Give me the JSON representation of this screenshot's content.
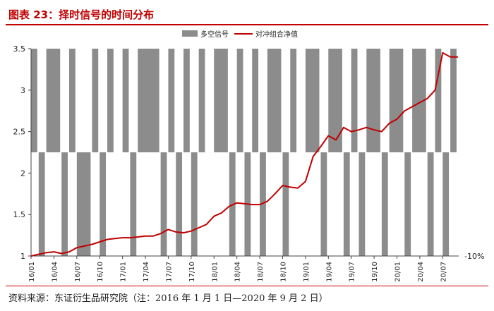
{
  "title": "图表 23：择时信号的时间分布",
  "source": "资料来源：东证衍生品研究院（注：2016 年 1 月 1 日—2020 年 9 月 2 日）",
  "colors": {
    "accent": "#c00000",
    "signal": "#8c8c8c",
    "line": "#c00000"
  },
  "chart_data": {
    "type": "line",
    "legend": [
      "多空信号",
      "对冲组合净值"
    ],
    "legend_position": "top-center",
    "y_left": {
      "ticks": [
        "1",
        "1.5",
        "2",
        "2.5",
        "3",
        "3.5"
      ],
      "ylim": [
        1,
        3.5
      ]
    },
    "y_right": {
      "ticks": [
        "-10%"
      ]
    },
    "x_ticks": [
      "16/01",
      "16/04",
      "16/07",
      "16/10",
      "17/01",
      "17/04",
      "17/07",
      "17/10",
      "18/01",
      "18/04",
      "18/07",
      "18/10",
      "19/01",
      "19/04",
      "19/07",
      "19/10",
      "20/01",
      "20/04",
      "20/07"
    ],
    "series": [
      {
        "name": "对冲组合净值",
        "x": [
          "16/01",
          "16/02",
          "16/03",
          "16/04",
          "16/05",
          "16/06",
          "16/07",
          "16/08",
          "16/09",
          "16/10",
          "16/11",
          "16/12",
          "17/01",
          "17/02",
          "17/03",
          "17/04",
          "17/05",
          "17/06",
          "17/07",
          "17/08",
          "17/09",
          "17/10",
          "17/11",
          "17/12",
          "18/01",
          "18/02",
          "18/03",
          "18/04",
          "18/05",
          "18/06",
          "18/07",
          "18/08",
          "18/09",
          "18/10",
          "18/11",
          "18/12",
          "19/01",
          "19/02",
          "19/03",
          "19/04",
          "19/05",
          "19/06",
          "19/07",
          "19/08",
          "19/09",
          "19/10",
          "19/11",
          "19/12",
          "20/01",
          "20/02",
          "20/03",
          "20/04",
          "20/05",
          "20/06",
          "20/07",
          "20/08",
          "20/09"
        ],
        "values": [
          1.0,
          1.02,
          1.04,
          1.05,
          1.03,
          1.05,
          1.1,
          1.12,
          1.14,
          1.17,
          1.2,
          1.21,
          1.22,
          1.22,
          1.23,
          1.24,
          1.24,
          1.27,
          1.32,
          1.29,
          1.28,
          1.3,
          1.34,
          1.38,
          1.48,
          1.52,
          1.6,
          1.64,
          1.63,
          1.62,
          1.62,
          1.66,
          1.75,
          1.85,
          1.83,
          1.82,
          1.9,
          2.2,
          2.32,
          2.45,
          2.4,
          2.55,
          2.5,
          2.52,
          2.55,
          2.52,
          2.5,
          2.6,
          2.65,
          2.75,
          2.8,
          2.85,
          2.9,
          3.0,
          3.45,
          3.4,
          3.4
        ]
      }
    ],
    "signal_spans": [
      {
        "state": "long",
        "from": "16/01",
        "to": "16/02"
      },
      {
        "state": "long",
        "from": "16/03",
        "to": "16/05"
      },
      {
        "state": "long",
        "from": "16/06",
        "to": "16/07"
      },
      {
        "state": "long",
        "from": "16/09",
        "to": "16/10"
      },
      {
        "state": "long",
        "from": "16/11",
        "to": "16/12"
      },
      {
        "state": "long",
        "from": "17/01",
        "to": "17/02"
      },
      {
        "state": "long",
        "from": "17/03",
        "to": "17/06"
      },
      {
        "state": "long",
        "from": "17/07",
        "to": "17/08"
      },
      {
        "state": "long",
        "from": "17/09",
        "to": "17/10"
      },
      {
        "state": "long",
        "from": "17/11",
        "to": "17/12"
      },
      {
        "state": "long",
        "from": "18/01",
        "to": "18/03"
      },
      {
        "state": "long",
        "from": "18/04",
        "to": "18/05"
      },
      {
        "state": "long",
        "from": "18/06",
        "to": "18/07"
      },
      {
        "state": "long",
        "from": "18/08",
        "to": "18/10"
      },
      {
        "state": "long",
        "from": "18/11",
        "to": "18/12"
      },
      {
        "state": "long",
        "from": "19/01",
        "to": "19/03"
      },
      {
        "state": "long",
        "from": "19/04",
        "to": "19/06"
      },
      {
        "state": "long",
        "from": "19/07",
        "to": "19/08"
      },
      {
        "state": "long",
        "from": "19/09",
        "to": "19/11"
      },
      {
        "state": "long",
        "from": "19/12",
        "to": "20/02"
      },
      {
        "state": "long",
        "from": "20/03",
        "to": "20/05"
      },
      {
        "state": "long",
        "from": "20/06",
        "to": "20/07"
      },
      {
        "state": "long",
        "from": "20/08",
        "to": "20/09"
      },
      {
        "state": "short",
        "from": "16/02",
        "to": "16/03"
      },
      {
        "state": "short",
        "from": "16/05",
        "to": "16/06"
      },
      {
        "state": "short",
        "from": "16/07",
        "to": "16/09"
      },
      {
        "state": "short",
        "from": "16/10",
        "to": "16/11"
      },
      {
        "state": "short",
        "from": "17/02",
        "to": "17/03"
      },
      {
        "state": "short",
        "from": "17/06",
        "to": "17/07"
      },
      {
        "state": "short",
        "from": "17/08",
        "to": "17/09"
      },
      {
        "state": "short",
        "from": "17/10",
        "to": "17/11"
      },
      {
        "state": "short",
        "from": "18/03",
        "to": "18/04"
      },
      {
        "state": "short",
        "from": "18/05",
        "to": "18/06"
      },
      {
        "state": "short",
        "from": "18/07",
        "to": "18/08"
      },
      {
        "state": "short",
        "from": "18/10",
        "to": "18/11"
      },
      {
        "state": "short",
        "from": "19/03",
        "to": "19/04"
      },
      {
        "state": "short",
        "from": "19/06",
        "to": "19/07"
      },
      {
        "state": "short",
        "from": "19/08",
        "to": "19/09"
      },
      {
        "state": "short",
        "from": "19/11",
        "to": "19/12"
      },
      {
        "state": "short",
        "from": "20/02",
        "to": "20/03"
      },
      {
        "state": "short",
        "from": "20/05",
        "to": "20/06"
      },
      {
        "state": "short",
        "from": "20/07",
        "to": "20/08"
      }
    ]
  }
}
